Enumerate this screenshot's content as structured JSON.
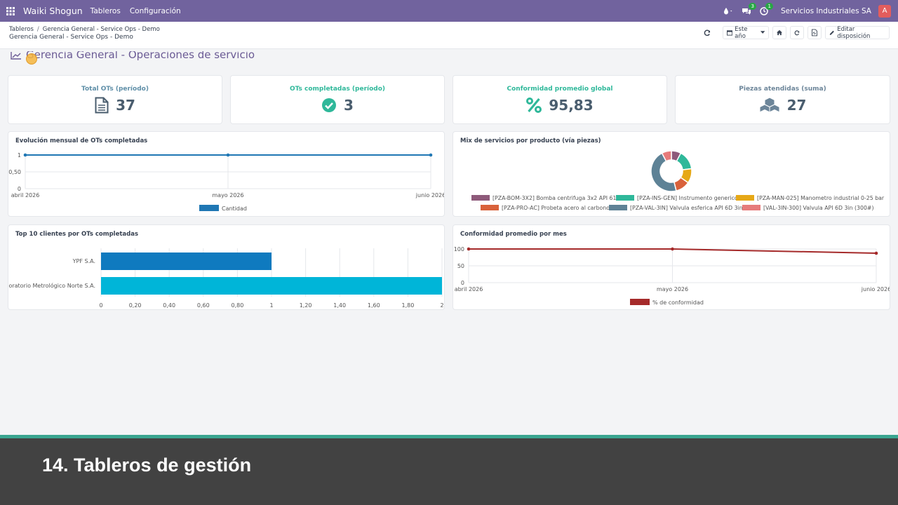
{
  "nav": {
    "brand": "Waiki Shogun",
    "menu": [
      "Tableros",
      "Configuración"
    ],
    "chat_count": "3",
    "activity_count": "1",
    "company": "Servicios Industriales SA",
    "avatar_letter": "A"
  },
  "breadcrumb": {
    "root": "Tableros",
    "current": "Gerencia General - Service Ops - Demo",
    "subtitle": "Gerencia General - Service Ops - Demo"
  },
  "controls": {
    "period": "Este año",
    "edit_layout": "Editar disposición"
  },
  "dashboard": {
    "title": "Gerencia General - Operaciones de servicio"
  },
  "kpis": [
    {
      "label": "Total OTs (período)",
      "value": "37",
      "icon": "document-icon",
      "color": "#5f8fa8"
    },
    {
      "label": "OTs completadas (período)",
      "value": "3",
      "icon": "check-circle-icon",
      "color": "#2fb89a"
    },
    {
      "label": "Conformidad promedio global",
      "value": "95,83",
      "icon": "percent-icon",
      "color": "#2fb89a"
    },
    {
      "label": "Piezas atendidas (suma)",
      "value": "27",
      "icon": "cubes-icon",
      "color": "#6c8599"
    }
  ],
  "charts": {
    "evolution_title": "Evolución mensual de OTs completadas",
    "mix_title": "Mix de servicios por producto (vía piezas)",
    "top_clients_title": "Top 10 clientes por OTs completadas",
    "conformity_title": "Conformidad promedio por mes"
  },
  "chart_data": [
    {
      "type": "line",
      "title": "Evolución mensual de OTs completadas",
      "x": [
        "abril 2026",
        "mayo 2026",
        "junio 2026"
      ],
      "yticks": [
        "0",
        "0,50",
        "1"
      ],
      "ylim": [
        0,
        1
      ],
      "series": [
        {
          "name": "Cantidad",
          "values": [
            1,
            1,
            1
          ],
          "color": "#1f77b4"
        }
      ],
      "legend": "bottom"
    },
    {
      "type": "pie",
      "title": "Mix de servicios por producto (vía piezas)",
      "labels": [
        "[PZA-BOM-3X2] Bomba centrifuga 3x2 API 610",
        "[PZA-INS-GEN] Instrumento generico",
        "[PZA-MAN-025] Manometro industrial 0-25 bar",
        "[PZA-PRO-AC] Probeta acero al carbono",
        "[PZA-VAL-3IN] Valvula esferica API 6D 3in",
        "[VAL-3IN-300] Valvula API 6D 3in (300#)"
      ],
      "values": [
        2,
        4,
        3,
        3,
        12,
        2
      ],
      "colors": [
        "#8e5a7a",
        "#2fb89a",
        "#e6a817",
        "#d9623b",
        "#5e8296",
        "#e67b7b"
      ],
      "legend": "bottom"
    },
    {
      "type": "bar",
      "orientation": "horizontal",
      "title": "Top 10 clientes por OTs completadas",
      "categories": [
        "YPF S.A.",
        "Laboratorio Metrológico Norte S.A."
      ],
      "values": [
        1,
        2
      ],
      "colors": [
        "#0f7abf",
        "#00b5d8"
      ],
      "xticks": [
        "0",
        "0,20",
        "0,40",
        "0,60",
        "0,80",
        "1",
        "1,20",
        "1,40",
        "1,60",
        "1,80",
        "2"
      ],
      "xlim": [
        0,
        2
      ]
    },
    {
      "type": "line",
      "title": "Conformidad promedio por mes",
      "x": [
        "abril 2026",
        "mayo 2026",
        "junio 2026"
      ],
      "yticks": [
        "0",
        "50",
        "100"
      ],
      "ylim": [
        0,
        100
      ],
      "series": [
        {
          "name": "% de conformidad",
          "values": [
            100,
            100,
            87.5
          ],
          "color": "#a52a2a"
        }
      ],
      "legend": "bottom"
    }
  ],
  "footer": {
    "caption": "14. Tableros de gestión"
  }
}
